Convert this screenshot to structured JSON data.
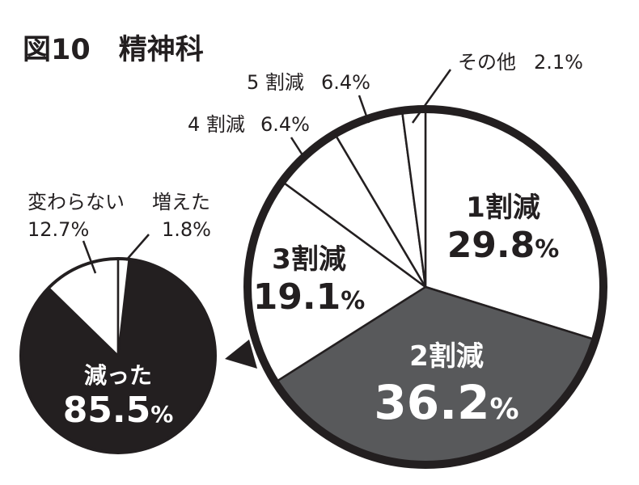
{
  "chart_data": [
    {
      "type": "pie",
      "title": "図10　精神科",
      "slices": [
        {
          "label": "減った",
          "value": 85.5,
          "value_text": "85.5",
          "unit": "%"
        },
        {
          "label": "変わらない",
          "value": 12.7,
          "value_text": "12.7",
          "unit": "%"
        },
        {
          "label": "増えた",
          "value": 1.8,
          "value_text": "1.8",
          "unit": "%"
        }
      ],
      "colors": [
        "#231f20",
        "#ffffff",
        "#ffffff"
      ]
    },
    {
      "type": "pie",
      "slices": [
        {
          "label": "1割減",
          "value": 29.8,
          "value_text": "29.8",
          "unit": "%"
        },
        {
          "label": "2割減",
          "value": 36.2,
          "value_text": "36.2",
          "unit": "%"
        },
        {
          "label": "3割減",
          "value": 19.1,
          "value_text": "19.1",
          "unit": "%"
        },
        {
          "label": "4 割減",
          "value": 6.4,
          "value_text": "6.4",
          "unit": "%"
        },
        {
          "label": "5 割減",
          "value": 6.4,
          "value_text": "6.4",
          "unit": "%"
        },
        {
          "label": "その他",
          "value": 2.1,
          "value_text": "2.1",
          "unit": "%"
        }
      ],
      "colors": [
        "#ffffff",
        "#58595b",
        "#ffffff",
        "#ffffff",
        "#ffffff",
        "#ffffff"
      ]
    }
  ]
}
